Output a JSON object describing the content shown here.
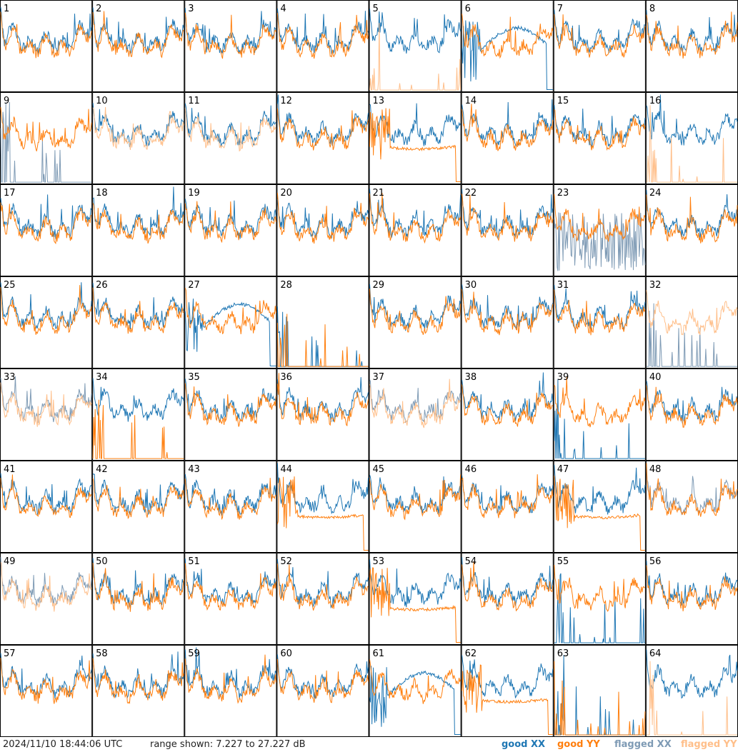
{
  "colors": {
    "good_xx": "#1f77b4",
    "good_yy": "#ff7f0e",
    "flagged_xx": "#7f9bb5",
    "flagged_yy": "#ffbf8a"
  },
  "footer": {
    "timestamp": "2024/11/10 18:44:06 UTC",
    "range_text": "range shown: 7.227 to 27.227 dB"
  },
  "chart_data": {
    "type": "line",
    "grid_rows": 8,
    "grid_cols": 8,
    "y_range_db": [
      7.227,
      27.227
    ],
    "legend": [
      {
        "label": "good XX",
        "color": "#1f77b4"
      },
      {
        "label": "good YY",
        "color": "#ff7f0e"
      },
      {
        "label": "flagged XX",
        "color": "#7f9bb5"
      },
      {
        "label": "flagged YY",
        "color": "#ffbf8a"
      }
    ],
    "tiles": [
      {
        "id": 1,
        "xx": "good",
        "yy": "good",
        "xx_shape": "normal",
        "yy_shape": "normal"
      },
      {
        "id": 2,
        "xx": "good",
        "yy": "good",
        "xx_shape": "normal",
        "yy_shape": "normal"
      },
      {
        "id": 3,
        "xx": "good",
        "yy": "good",
        "xx_shape": "normal",
        "yy_shape": "normal"
      },
      {
        "id": 4,
        "xx": "good",
        "yy": "good",
        "xx_shape": "normal",
        "yy_shape": "normal"
      },
      {
        "id": 5,
        "xx": "good",
        "yy": "flagged",
        "xx_shape": "normal",
        "yy_shape": "spikes"
      },
      {
        "id": 6,
        "xx": "good",
        "yy": "good",
        "xx_shape": "hump",
        "yy_shape": "normal"
      },
      {
        "id": 7,
        "xx": "good",
        "yy": "good",
        "xx_shape": "normal",
        "yy_shape": "normal"
      },
      {
        "id": 8,
        "xx": "good",
        "yy": "good",
        "xx_shape": "normal",
        "yy_shape": "normal"
      },
      {
        "id": 9,
        "xx": "flagged",
        "yy": "good",
        "xx_shape": "spikes",
        "yy_shape": "normal"
      },
      {
        "id": 10,
        "xx": "good",
        "yy": "flagged",
        "xx_shape": "normal",
        "yy_shape": "normal"
      },
      {
        "id": 11,
        "xx": "good",
        "yy": "flagged",
        "xx_shape": "normal",
        "yy_shape": "normal"
      },
      {
        "id": 12,
        "xx": "good",
        "yy": "good",
        "xx_shape": "normal",
        "yy_shape": "normal"
      },
      {
        "id": 13,
        "xx": "good",
        "yy": "good",
        "xx_shape": "normal",
        "yy_shape": "flat"
      },
      {
        "id": 14,
        "xx": "good",
        "yy": "good",
        "xx_shape": "normal",
        "yy_shape": "normal"
      },
      {
        "id": 15,
        "xx": "good",
        "yy": "good",
        "xx_shape": "normal",
        "yy_shape": "normal"
      },
      {
        "id": 16,
        "xx": "good",
        "yy": "flagged",
        "xx_shape": "normal",
        "yy_shape": "spikes"
      },
      {
        "id": 17,
        "xx": "good",
        "yy": "good",
        "xx_shape": "normal",
        "yy_shape": "normal"
      },
      {
        "id": 18,
        "xx": "good",
        "yy": "good",
        "xx_shape": "normal",
        "yy_shape": "normal"
      },
      {
        "id": 19,
        "xx": "good",
        "yy": "good",
        "xx_shape": "normal",
        "yy_shape": "normal"
      },
      {
        "id": 20,
        "xx": "good",
        "yy": "good",
        "xx_shape": "normal",
        "yy_shape": "normal"
      },
      {
        "id": 21,
        "xx": "good",
        "yy": "good",
        "xx_shape": "normal",
        "yy_shape": "normal"
      },
      {
        "id": 22,
        "xx": "good",
        "yy": "good",
        "xx_shape": "normal",
        "yy_shape": "normal"
      },
      {
        "id": 23,
        "xx": "flagged",
        "yy": "good",
        "xx_shape": "noisy",
        "yy_shape": "normal"
      },
      {
        "id": 24,
        "xx": "good",
        "yy": "good",
        "xx_shape": "normal",
        "yy_shape": "normal"
      },
      {
        "id": 25,
        "xx": "good",
        "yy": "good",
        "xx_shape": "normal",
        "yy_shape": "normal"
      },
      {
        "id": 26,
        "xx": "good",
        "yy": "good",
        "xx_shape": "normal",
        "yy_shape": "normal"
      },
      {
        "id": 27,
        "xx": "good",
        "yy": "good",
        "xx_shape": "hump",
        "yy_shape": "normal"
      },
      {
        "id": 28,
        "xx": "good",
        "yy": "good",
        "xx_shape": "spikes",
        "yy_shape": "spikes"
      },
      {
        "id": 29,
        "xx": "good",
        "yy": "good",
        "xx_shape": "normal",
        "yy_shape": "normal"
      },
      {
        "id": 30,
        "xx": "good",
        "yy": "good",
        "xx_shape": "normal",
        "yy_shape": "normal"
      },
      {
        "id": 31,
        "xx": "good",
        "yy": "good",
        "xx_shape": "normal",
        "yy_shape": "normal"
      },
      {
        "id": 32,
        "xx": "flagged",
        "yy": "flagged",
        "xx_shape": "spikes",
        "yy_shape": "normal"
      },
      {
        "id": 33,
        "xx": "flagged",
        "yy": "flagged",
        "xx_shape": "normal",
        "yy_shape": "normal"
      },
      {
        "id": 34,
        "xx": "good",
        "yy": "good",
        "xx_shape": "normal",
        "yy_shape": "spikes"
      },
      {
        "id": 35,
        "xx": "good",
        "yy": "good",
        "xx_shape": "normal",
        "yy_shape": "normal"
      },
      {
        "id": 36,
        "xx": "good",
        "yy": "good",
        "xx_shape": "normal",
        "yy_shape": "normal"
      },
      {
        "id": 37,
        "xx": "flagged",
        "yy": "flagged",
        "xx_shape": "normal",
        "yy_shape": "normal"
      },
      {
        "id": 38,
        "xx": "good",
        "yy": "good",
        "xx_shape": "normal",
        "yy_shape": "normal"
      },
      {
        "id": 39,
        "xx": "good",
        "yy": "good",
        "xx_shape": "spikes",
        "yy_shape": "normal"
      },
      {
        "id": 40,
        "xx": "good",
        "yy": "good",
        "xx_shape": "normal",
        "yy_shape": "normal"
      },
      {
        "id": 41,
        "xx": "good",
        "yy": "good",
        "xx_shape": "normal",
        "yy_shape": "normal"
      },
      {
        "id": 42,
        "xx": "good",
        "yy": "good",
        "xx_shape": "normal",
        "yy_shape": "normal"
      },
      {
        "id": 43,
        "xx": "good",
        "yy": "good",
        "xx_shape": "normal",
        "yy_shape": "normal"
      },
      {
        "id": 44,
        "xx": "good",
        "yy": "good",
        "xx_shape": "normal",
        "yy_shape": "flat"
      },
      {
        "id": 45,
        "xx": "good",
        "yy": "good",
        "xx_shape": "normal",
        "yy_shape": "normal"
      },
      {
        "id": 46,
        "xx": "good",
        "yy": "good",
        "xx_shape": "normal",
        "yy_shape": "normal"
      },
      {
        "id": 47,
        "xx": "good",
        "yy": "good",
        "xx_shape": "normal",
        "yy_shape": "flat"
      },
      {
        "id": 48,
        "xx": "flagged",
        "yy": "good",
        "xx_shape": "normal",
        "yy_shape": "normal"
      },
      {
        "id": 49,
        "xx": "flagged",
        "yy": "flagged",
        "xx_shape": "normal",
        "yy_shape": "normal"
      },
      {
        "id": 50,
        "xx": "good",
        "yy": "good",
        "xx_shape": "normal",
        "yy_shape": "normal"
      },
      {
        "id": 51,
        "xx": "good",
        "yy": "good",
        "xx_shape": "normal",
        "yy_shape": "normal"
      },
      {
        "id": 52,
        "xx": "good",
        "yy": "good",
        "xx_shape": "normal",
        "yy_shape": "normal"
      },
      {
        "id": 53,
        "xx": "good",
        "yy": "good",
        "xx_shape": "normal",
        "yy_shape": "flat"
      },
      {
        "id": 54,
        "xx": "good",
        "yy": "good",
        "xx_shape": "normal",
        "yy_shape": "normal"
      },
      {
        "id": 55,
        "xx": "good",
        "yy": "good",
        "xx_shape": "spikes",
        "yy_shape": "normal"
      },
      {
        "id": 56,
        "xx": "good",
        "yy": "good",
        "xx_shape": "normal",
        "yy_shape": "normal"
      },
      {
        "id": 57,
        "xx": "good",
        "yy": "good",
        "xx_shape": "normal",
        "yy_shape": "normal"
      },
      {
        "id": 58,
        "xx": "good",
        "yy": "good",
        "xx_shape": "normal",
        "yy_shape": "normal"
      },
      {
        "id": 59,
        "xx": "good",
        "yy": "good",
        "xx_shape": "normal",
        "yy_shape": "normal"
      },
      {
        "id": 60,
        "xx": "good",
        "yy": "good",
        "xx_shape": "normal",
        "yy_shape": "normal"
      },
      {
        "id": 61,
        "xx": "good",
        "yy": "good",
        "xx_shape": "hump",
        "yy_shape": "normal"
      },
      {
        "id": 62,
        "xx": "good",
        "yy": "good",
        "xx_shape": "normal",
        "yy_shape": "flat"
      },
      {
        "id": 63,
        "xx": "good",
        "yy": "good",
        "xx_shape": "spikes",
        "yy_shape": "spikes"
      },
      {
        "id": 64,
        "xx": "good",
        "yy": "flagged",
        "xx_shape": "normal",
        "yy_shape": "spikes"
      }
    ]
  }
}
